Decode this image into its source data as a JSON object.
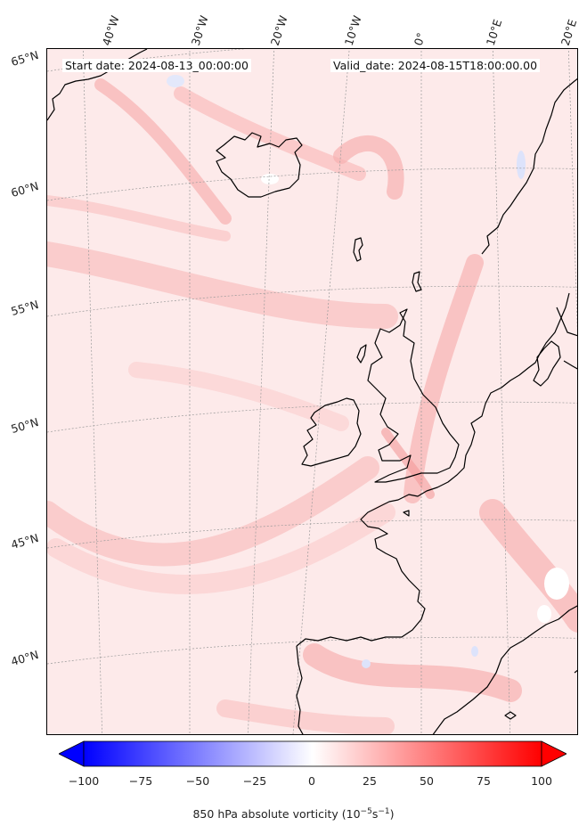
{
  "header": {
    "start_date": "Start date: 2024-08-13_00:00:00",
    "valid_date": "Valid_date: 2024-08-15T18:00:00.00"
  },
  "longitude_labels": [
    "40°W",
    "30°W",
    "20°W",
    "10°W",
    "0°",
    "10°E",
    "20°E"
  ],
  "latitude_labels": [
    "65°N",
    "60°N",
    "55°N",
    "50°N",
    "45°N",
    "40°N"
  ],
  "colorbar": {
    "label_prefix": "850 hPa absolute vorticity (10",
    "label_exp1": "−5",
    "label_mid": "s",
    "label_exp2": "−1",
    "label_suffix": ")",
    "ticks": [
      "−100",
      "−75",
      "−50",
      "−25",
      "0",
      "25",
      "50",
      "75",
      "100"
    ],
    "min": -100,
    "max": 100,
    "low_color": "#0000ff",
    "mid_color": "#ffffff",
    "high_color": "#ff0000",
    "extend": "both"
  },
  "map_colors": {
    "background": "#fdeaea",
    "light_band": "#fcd4d4",
    "medium_band": "#f9b8b8",
    "coastline": "#000000",
    "gridline": "#9a9a9a"
  }
}
